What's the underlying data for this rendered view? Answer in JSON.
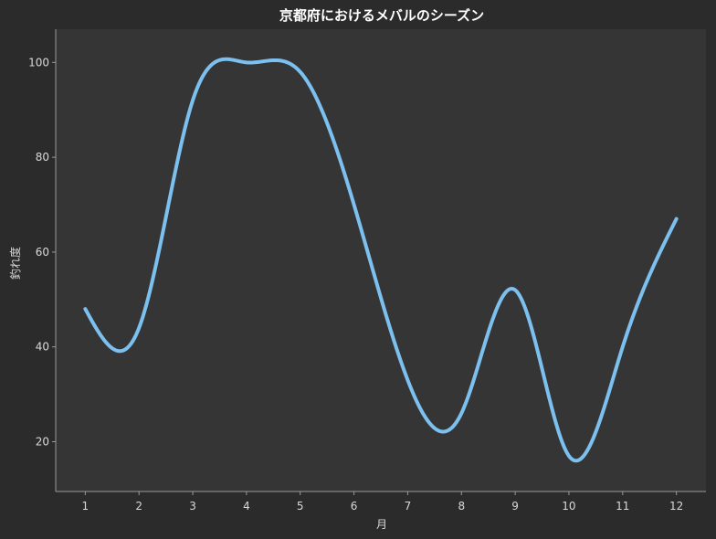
{
  "chart_data": {
    "type": "line",
    "title": "京都府におけるメバルのシーズン",
    "xlabel": "月",
    "ylabel": "釣れ度",
    "x": [
      1,
      2,
      3,
      4,
      5,
      6,
      7,
      8,
      9,
      10,
      11,
      12
    ],
    "x_ticks": [
      "1",
      "2",
      "3",
      "4",
      "5",
      "6",
      "7",
      "8",
      "9",
      "10",
      "11",
      "12"
    ],
    "y_ticks": [
      "20",
      "40",
      "60",
      "80",
      "100"
    ],
    "y_tick_values": [
      20,
      40,
      60,
      80,
      100
    ],
    "xlim": [
      0.45,
      12.55
    ],
    "ylim": [
      9.5,
      107
    ],
    "grid": false,
    "series": [
      {
        "values": [
          48,
          44,
          92,
          100,
          98,
          70,
          33,
          26,
          52,
          17,
          40,
          67
        ],
        "color": "#7cc0f0"
      }
    ],
    "colors": {
      "background": "#2b2b2b",
      "plot_background": "#353535",
      "text": "#d9d9d9",
      "axis": "#9a9a9a"
    }
  }
}
